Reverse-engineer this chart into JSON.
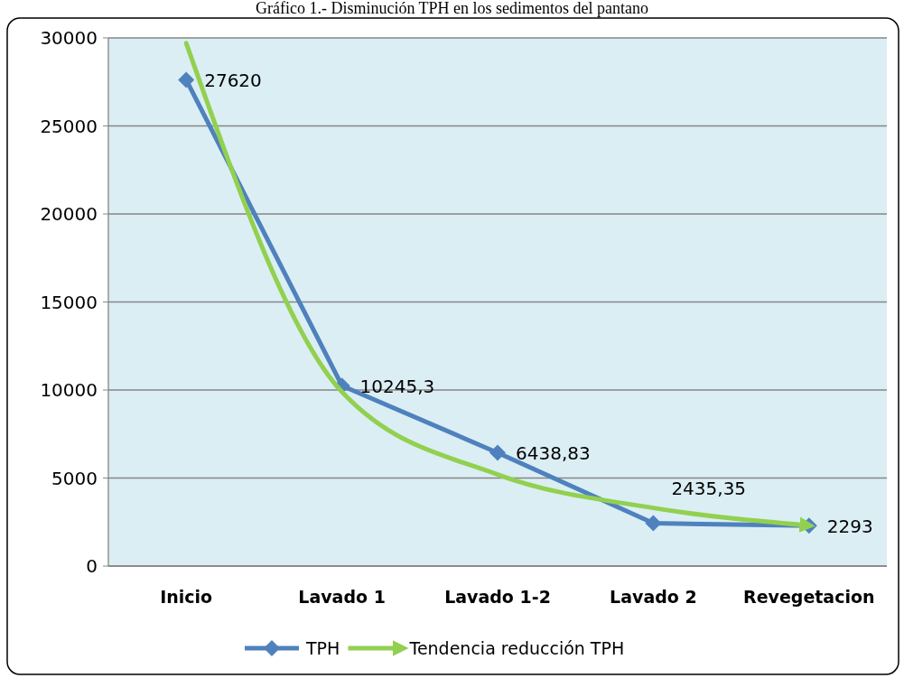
{
  "chart_data": {
    "type": "line",
    "title": "Gráfico 1.- Disminución TPH en los sedimentos del pantano",
    "categories": [
      "Inicio",
      "Lavado 1",
      "Lavado 1-2",
      "Lavado 2",
      "Revegetacion"
    ],
    "series": [
      {
        "name": "TPH",
        "color": "#4f81bd",
        "values": [
          27620,
          10245.3,
          6438.83,
          2435.35,
          2293
        ],
        "value_labels": [
          "27620",
          "10245,3",
          "6438,83",
          "2435,35",
          "2293"
        ],
        "marker": "diamond"
      },
      {
        "name": "Tendencia reducción TPH",
        "color": "#92d050",
        "values": [
          29700,
          9900,
          5200,
          3300,
          2300
        ],
        "marker": "none"
      }
    ],
    "ylim": [
      0,
      30000
    ],
    "yticks": [
      0,
      5000,
      10000,
      15000,
      20000,
      25000,
      30000
    ],
    "grid": "y",
    "legend": "bottom"
  }
}
